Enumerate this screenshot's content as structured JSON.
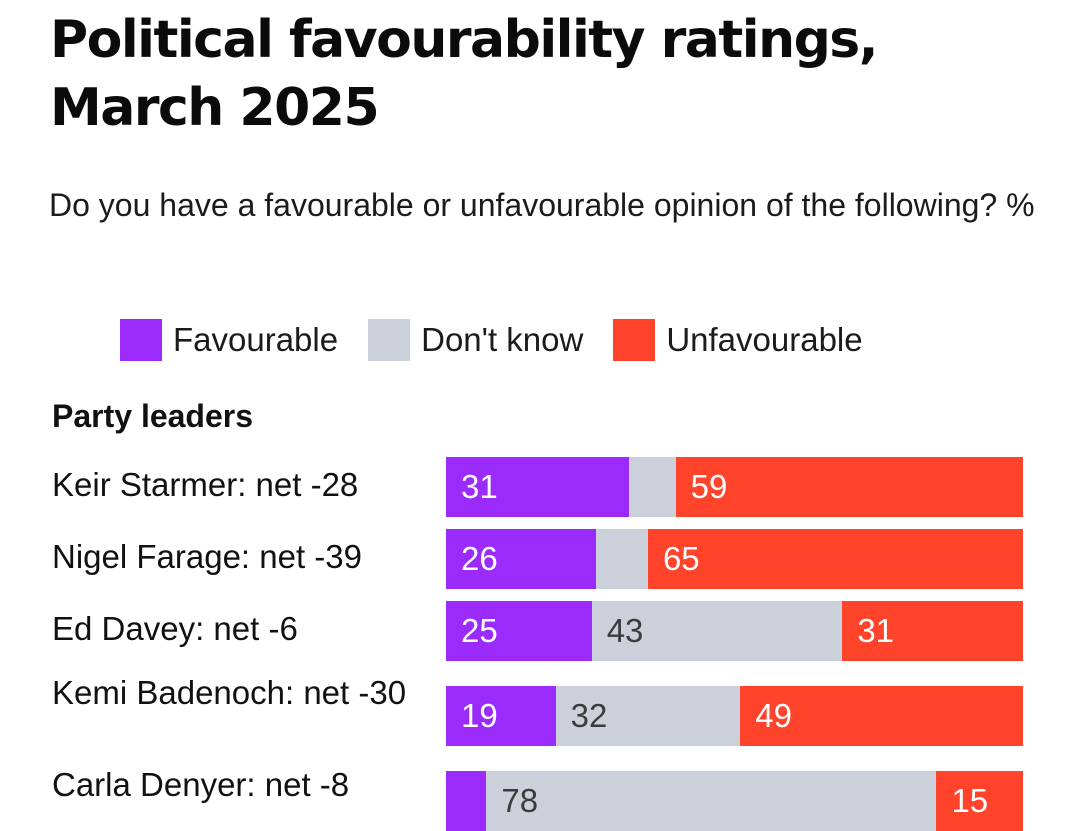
{
  "title": "Political favourability ratings, March 2025",
  "subtitle": "Do you have a favourable or unfavourable opinion of the following? %",
  "colors": {
    "favourable": "#9b2bfb",
    "dont_know": "#ccd0da",
    "unfavourable": "#ff442b"
  },
  "legend": [
    {
      "label": "Favourable",
      "color": "#9b2bfb"
    },
    {
      "label": "Don't know",
      "color": "#ccd0da"
    },
    {
      "label": "Unfavourable",
      "color": "#ff442b"
    }
  ],
  "chart_data": {
    "type": "bar",
    "orientation": "horizontal",
    "stacked": true,
    "title": "Political favourability ratings, March 2025",
    "subtitle": "Do you have a favourable or unfavourable opinion of the following? %",
    "section": "Party leaders",
    "legend_position": "top",
    "categories": [
      "Keir Starmer: net -28",
      "Nigel Farage: net -39",
      "Ed Davey: net -6",
      "Kemi Badenoch: net -30",
      "Carla Denyer: net -8"
    ],
    "series": [
      {
        "name": "Favourable",
        "values": [
          31,
          26,
          25,
          19,
          7
        ]
      },
      {
        "name": "Don't know",
        "values": [
          8,
          9,
          43,
          32,
          78
        ]
      },
      {
        "name": "Unfavourable",
        "values": [
          59,
          65,
          31,
          49,
          15
        ]
      }
    ],
    "xlim": [
      0,
      100
    ],
    "grid": false
  }
}
